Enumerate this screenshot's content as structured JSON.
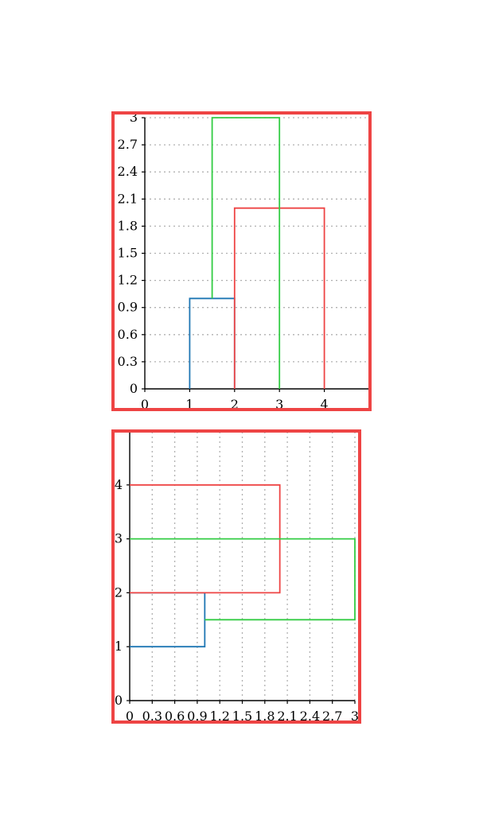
{
  "chart_data": [
    {
      "type": "dendrogram",
      "orientation": "vertical",
      "xlim": [
        0,
        5
      ],
      "ylim": [
        0,
        3
      ],
      "xticks": [
        0,
        1,
        2,
        3,
        4
      ],
      "xtick_labels": [
        "0",
        "1",
        "2",
        "3",
        "4"
      ],
      "yticks": [
        0,
        0.3,
        0.6,
        0.9,
        1.2,
        1.5,
        1.8,
        2.1,
        2.4,
        2.7,
        3
      ],
      "ytick_labels": [
        "0",
        "0.3",
        "0.6",
        "0.9",
        "1.2",
        "1.5",
        "1.8",
        "2.1",
        "2.4",
        "2.7",
        "3"
      ],
      "grid": "y-dotted",
      "links": [
        {
          "color": "#1f77b4",
          "leaves": [
            1,
            2
          ],
          "height": 1.0,
          "children_heights": [
            0,
            0
          ],
          "points": [
            [
              1,
              0
            ],
            [
              1,
              1.0
            ],
            [
              2,
              1.0
            ],
            [
              2,
              0
            ]
          ]
        },
        {
          "color": "#ee4444",
          "leaves": [
            2,
            4
          ],
          "height": 2.0,
          "children_heights": [
            0,
            0
          ],
          "points": [
            [
              2,
              0
            ],
            [
              2,
              2.0
            ],
            [
              4,
              2.0
            ],
            [
              4,
              0
            ]
          ]
        },
        {
          "color": "#33cc44",
          "leaves": [
            1.5,
            3
          ],
          "height": 3.0,
          "children_heights": [
            1.0,
            0
          ],
          "points": [
            [
              1.5,
              1.0
            ],
            [
              1.5,
              3.0
            ],
            [
              3,
              3.0
            ],
            [
              3,
              0
            ]
          ]
        }
      ]
    },
    {
      "type": "dendrogram",
      "orientation": "horizontal",
      "xlim": [
        0,
        3
      ],
      "ylim": [
        0,
        5
      ],
      "xticks": [
        0,
        0.3,
        0.6,
        0.9,
        1.2,
        1.5,
        1.8,
        2.1,
        2.4,
        2.7,
        3
      ],
      "xtick_labels": [
        "0",
        "0.3",
        "0.6",
        "0.9",
        "1.2",
        "1.5",
        "1.8",
        "2.1",
        "2.4",
        "2.7",
        "3"
      ],
      "yticks": [
        0,
        1,
        2,
        3,
        4
      ],
      "ytick_labels": [
        "0",
        "1",
        "2",
        "3",
        "4"
      ],
      "grid": "x-dotted",
      "links": [
        {
          "color": "#1f77b4",
          "points": [
            [
              0,
              1
            ],
            [
              1.0,
              1
            ],
            [
              1.0,
              2
            ],
            [
              0,
              2
            ]
          ]
        },
        {
          "color": "#ee4444",
          "points": [
            [
              0,
              2
            ],
            [
              2.0,
              2
            ],
            [
              2.0,
              4
            ],
            [
              0,
              4
            ]
          ]
        },
        {
          "color": "#33cc44",
          "points": [
            [
              1.0,
              1.5
            ],
            [
              3.0,
              1.5
            ],
            [
              3.0,
              3
            ],
            [
              0,
              3
            ]
          ]
        }
      ]
    }
  ],
  "frame_color": "#ee4444"
}
